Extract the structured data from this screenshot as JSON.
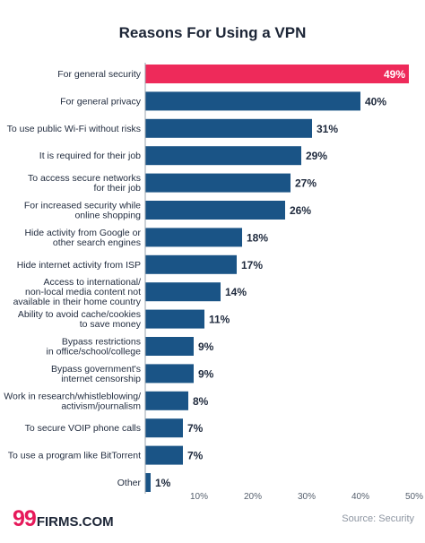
{
  "brand": {
    "number": "99",
    "name": "FIRMS.COM"
  },
  "source": "Source: Security",
  "colors": {
    "bar": "#1a5486",
    "highlight": "#ee2a5a"
  },
  "chart_data": {
    "type": "bar",
    "orientation": "horizontal",
    "title": "Reasons For Using a VPN",
    "categories": [
      "For general security",
      "For general privacy",
      "To use public Wi-Fi without risks",
      "It is required for their job",
      "To access secure networks\nfor their job",
      "For increased security while\nonline shopping",
      "Hide activity from Google or\nother search engines",
      "Hide internet activity from ISP",
      "Access to international/\nnon-local media content not\navailable in their home country",
      "Ability to avoid cache/cookies\nto save money",
      "Bypass restrictions\nin office/school/college",
      "Bypass government's\ninternet censorship",
      "Work in research/whistleblowing/\nactivism/journalism",
      "To secure VOIP phone calls",
      "To use a program like BitTorrent",
      "Other"
    ],
    "values": [
      49,
      40,
      31,
      29,
      27,
      26,
      18,
      17,
      14,
      11,
      9,
      9,
      8,
      7,
      7,
      1
    ],
    "value_labels": [
      "49%",
      "40%",
      "31%",
      "29%",
      "27%",
      "26%",
      "18%",
      "17%",
      "14%",
      "11%",
      "9%",
      "9%",
      "8%",
      "7%",
      "7%",
      "1%"
    ],
    "highlight_index": 0,
    "xlim": [
      0,
      50
    ],
    "xticks": [
      "10%",
      "20%",
      "30%",
      "40%",
      "50%"
    ],
    "xtick_values": [
      10,
      20,
      30,
      40,
      50
    ],
    "grid": false,
    "legend": "none"
  }
}
